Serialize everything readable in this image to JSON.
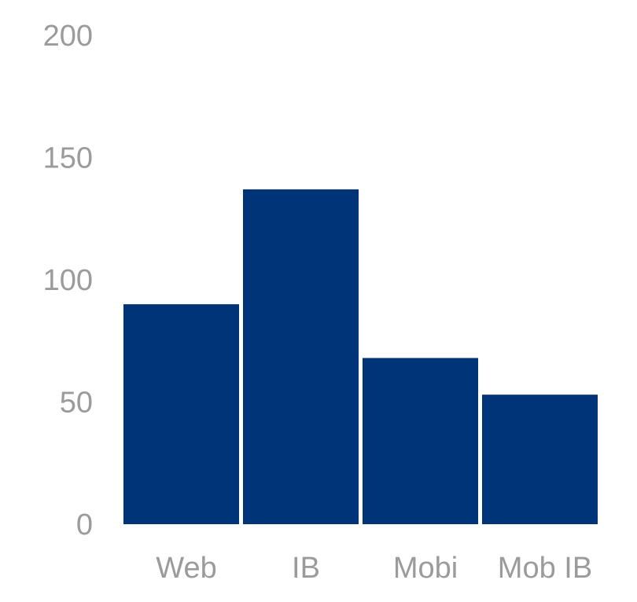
{
  "chart_data": {
    "type": "bar",
    "categories": [
      "Web",
      "IB",
      "Mobi",
      "Mob IB"
    ],
    "values": [
      90,
      137,
      68,
      53
    ],
    "title": "",
    "xlabel": "",
    "ylabel": "",
    "ylim": [
      0,
      200
    ],
    "yticks": [
      "0",
      "50",
      "100",
      "150",
      "200"
    ],
    "grid": false,
    "legend": "none",
    "bar_color": "#003478",
    "tick_color": "#9b9b9b"
  }
}
